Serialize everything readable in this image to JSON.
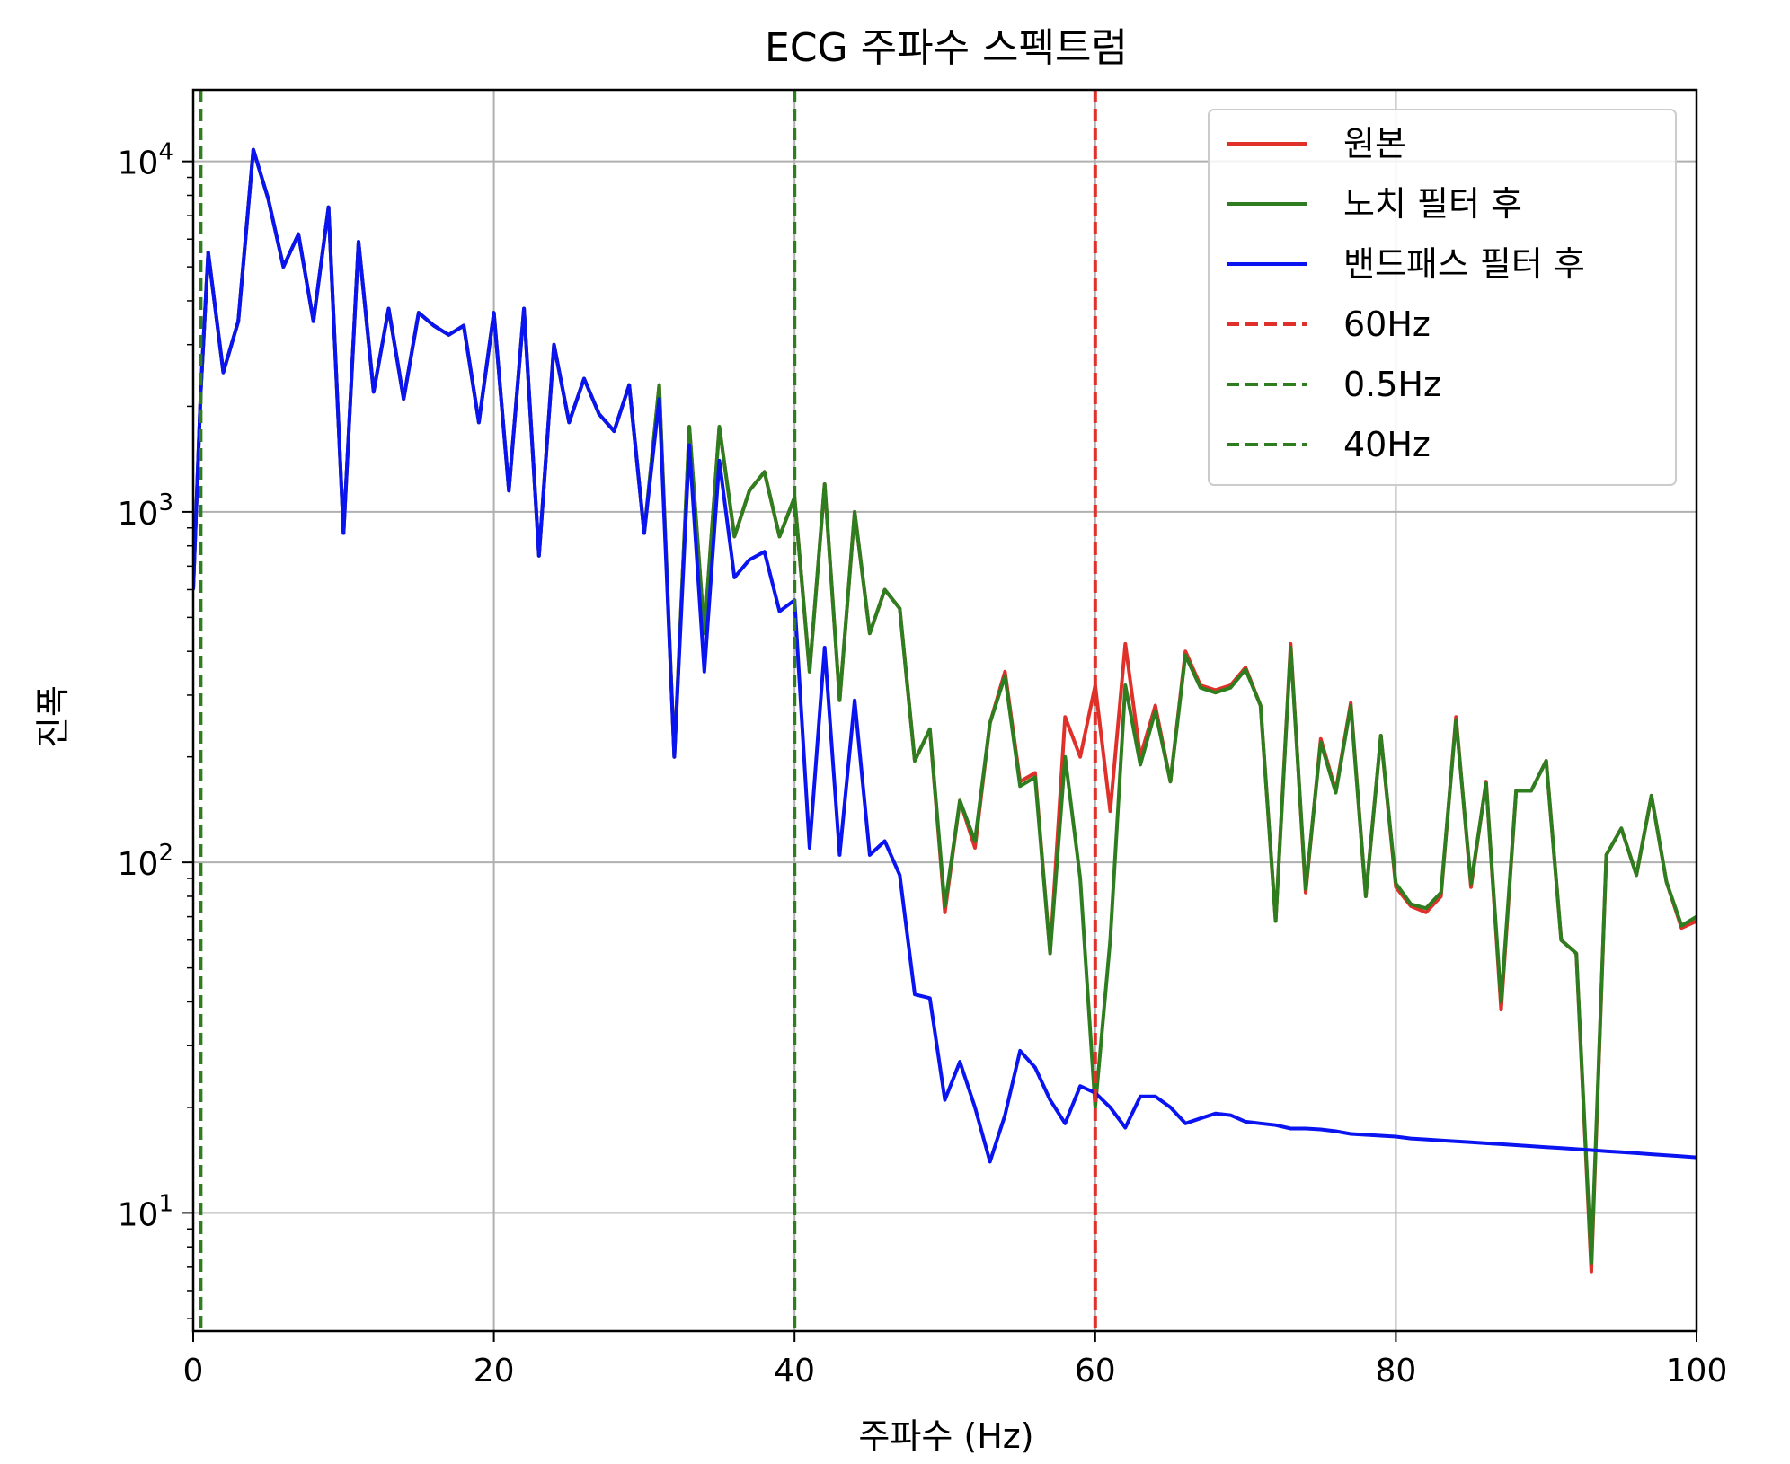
{
  "chart_data": {
    "type": "line",
    "title": "ECG 주파수 스펙트럼",
    "xlabel": "주파수 (Hz)",
    "ylabel": "진폭",
    "xlim": [
      0,
      100
    ],
    "ylim": [
      4.6,
      16000
    ],
    "yscale": "log",
    "grid": true,
    "legend_position": "top-right",
    "x_ticks": [
      0,
      20,
      40,
      60,
      80,
      100
    ],
    "x_tick_labels": [
      "0",
      "20",
      "40",
      "60",
      "80",
      "100"
    ],
    "y_ticks": [
      10,
      100,
      1000,
      10000
    ],
    "y_tick_base": "10",
    "y_tick_exponents": [
      "1",
      "2",
      "3",
      "4"
    ],
    "x": [
      0,
      0.5,
      1,
      2,
      3,
      4,
      5,
      6,
      7,
      8,
      9,
      10,
      11,
      12,
      13,
      14,
      15,
      16,
      17,
      18,
      19,
      20,
      21,
      22,
      23,
      24,
      25,
      26,
      27,
      28,
      29,
      30,
      31,
      32,
      33,
      34,
      35,
      36,
      37,
      38,
      39,
      40,
      41,
      42,
      43,
      44,
      45,
      46,
      47,
      48,
      49,
      50,
      51,
      52,
      53,
      54,
      55,
      56,
      57,
      58,
      59,
      60,
      61,
      62,
      63,
      64,
      65,
      66,
      67,
      68,
      69,
      70,
      71,
      72,
      73,
      74,
      75,
      76,
      77,
      78,
      79,
      80,
      81,
      82,
      83,
      84,
      85,
      86,
      87,
      88,
      89,
      90,
      91,
      92,
      93,
      94,
      95,
      96,
      97,
      98,
      99,
      100
    ],
    "series": [
      {
        "name": "원본",
        "color": "#e0302a",
        "style": "solid",
        "values": [
          600,
          2200,
          5500,
          2500,
          3500,
          10800,
          7800,
          5000,
          6200,
          3500,
          7400,
          870,
          5900,
          2200,
          3800,
          2100,
          3700,
          3400,
          3200,
          3400,
          1800,
          3700,
          1150,
          3800,
          750,
          3000,
          1800,
          2400,
          1900,
          1700,
          2300,
          870,
          2300,
          200,
          1750,
          450,
          1750,
          850,
          1150,
          1300,
          850,
          1100,
          350,
          1200,
          290,
          1000,
          450,
          600,
          530,
          195,
          240,
          72,
          150,
          110,
          250,
          350,
          170,
          180,
          55,
          260,
          200,
          320,
          140,
          420,
          200,
          280,
          170,
          400,
          320,
          310,
          320,
          360,
          280,
          68,
          420,
          82,
          225,
          160,
          285,
          80,
          230,
          85,
          75,
          72,
          80,
          260,
          85,
          170,
          38,
          160,
          160,
          195,
          60,
          55,
          6.8,
          105,
          125,
          92,
          155,
          88,
          65,
          68
        ]
      },
      {
        "name": "노치 필터 후",
        "color": "#2e7d1f",
        "style": "solid",
        "values": [
          600,
          2200,
          5500,
          2500,
          3500,
          10800,
          7800,
          5000,
          6200,
          3500,
          7400,
          870,
          5900,
          2200,
          3800,
          2100,
          3700,
          3400,
          3200,
          3400,
          1800,
          3700,
          1150,
          3800,
          750,
          3000,
          1800,
          2400,
          1900,
          1700,
          2300,
          870,
          2300,
          200,
          1750,
          450,
          1750,
          850,
          1150,
          1300,
          850,
          1100,
          350,
          1200,
          290,
          1000,
          450,
          600,
          530,
          195,
          240,
          75,
          150,
          115,
          250,
          340,
          165,
          175,
          55,
          200,
          90,
          20,
          60,
          320,
          190,
          270,
          170,
          390,
          315,
          305,
          315,
          355,
          280,
          68,
          410,
          84,
          220,
          158,
          280,
          80,
          230,
          87,
          76,
          74,
          82,
          255,
          87,
          168,
          40,
          160,
          160,
          195,
          60,
          55,
          7.2,
          105,
          125,
          92,
          155,
          88,
          66,
          70
        ]
      },
      {
        "name": "밴드패스 필터 후",
        "color": "#0a14f0",
        "style": "solid",
        "values": [
          600,
          2200,
          5500,
          2500,
          3500,
          10800,
          7800,
          5000,
          6200,
          3500,
          7400,
          870,
          5900,
          2200,
          3800,
          2100,
          3700,
          3400,
          3200,
          3400,
          1800,
          3700,
          1150,
          3800,
          750,
          3000,
          1800,
          2400,
          1900,
          1700,
          2300,
          870,
          2100,
          200,
          1550,
          350,
          1400,
          650,
          730,
          770,
          520,
          560,
          110,
          410,
          105,
          290,
          105,
          115,
          92,
          42,
          41,
          21,
          27,
          20,
          14,
          19,
          29,
          26,
          21,
          18,
          23,
          22,
          20,
          17.5,
          21.5,
          21.5,
          20,
          18,
          18.6,
          19.2,
          19,
          18.2,
          18,
          17.8,
          17.4,
          17.4,
          17.3,
          17.1,
          16.8,
          16.7,
          16.6,
          16.5,
          16.3,
          16.2,
          16.1,
          16,
          15.9,
          15.8,
          15.7,
          15.6,
          15.5,
          15.4,
          15.3,
          15.2,
          15.1,
          15,
          14.9,
          14.8,
          14.7,
          14.6,
          14.5,
          14.4
        ]
      }
    ],
    "vlines": [
      {
        "name": "60Hz",
        "x": 60,
        "color": "#e0302a",
        "style": "dashed"
      },
      {
        "name": "0.5Hz",
        "x": 0.5,
        "color": "#2e7d1f",
        "style": "dashed"
      },
      {
        "name": "40Hz",
        "x": 40,
        "color": "#2e7d1f",
        "style": "dashed"
      }
    ],
    "legend": [
      "원본",
      "노치 필터 후",
      "밴드패스 필터 후",
      "60Hz",
      "0.5Hz",
      "40Hz"
    ]
  }
}
